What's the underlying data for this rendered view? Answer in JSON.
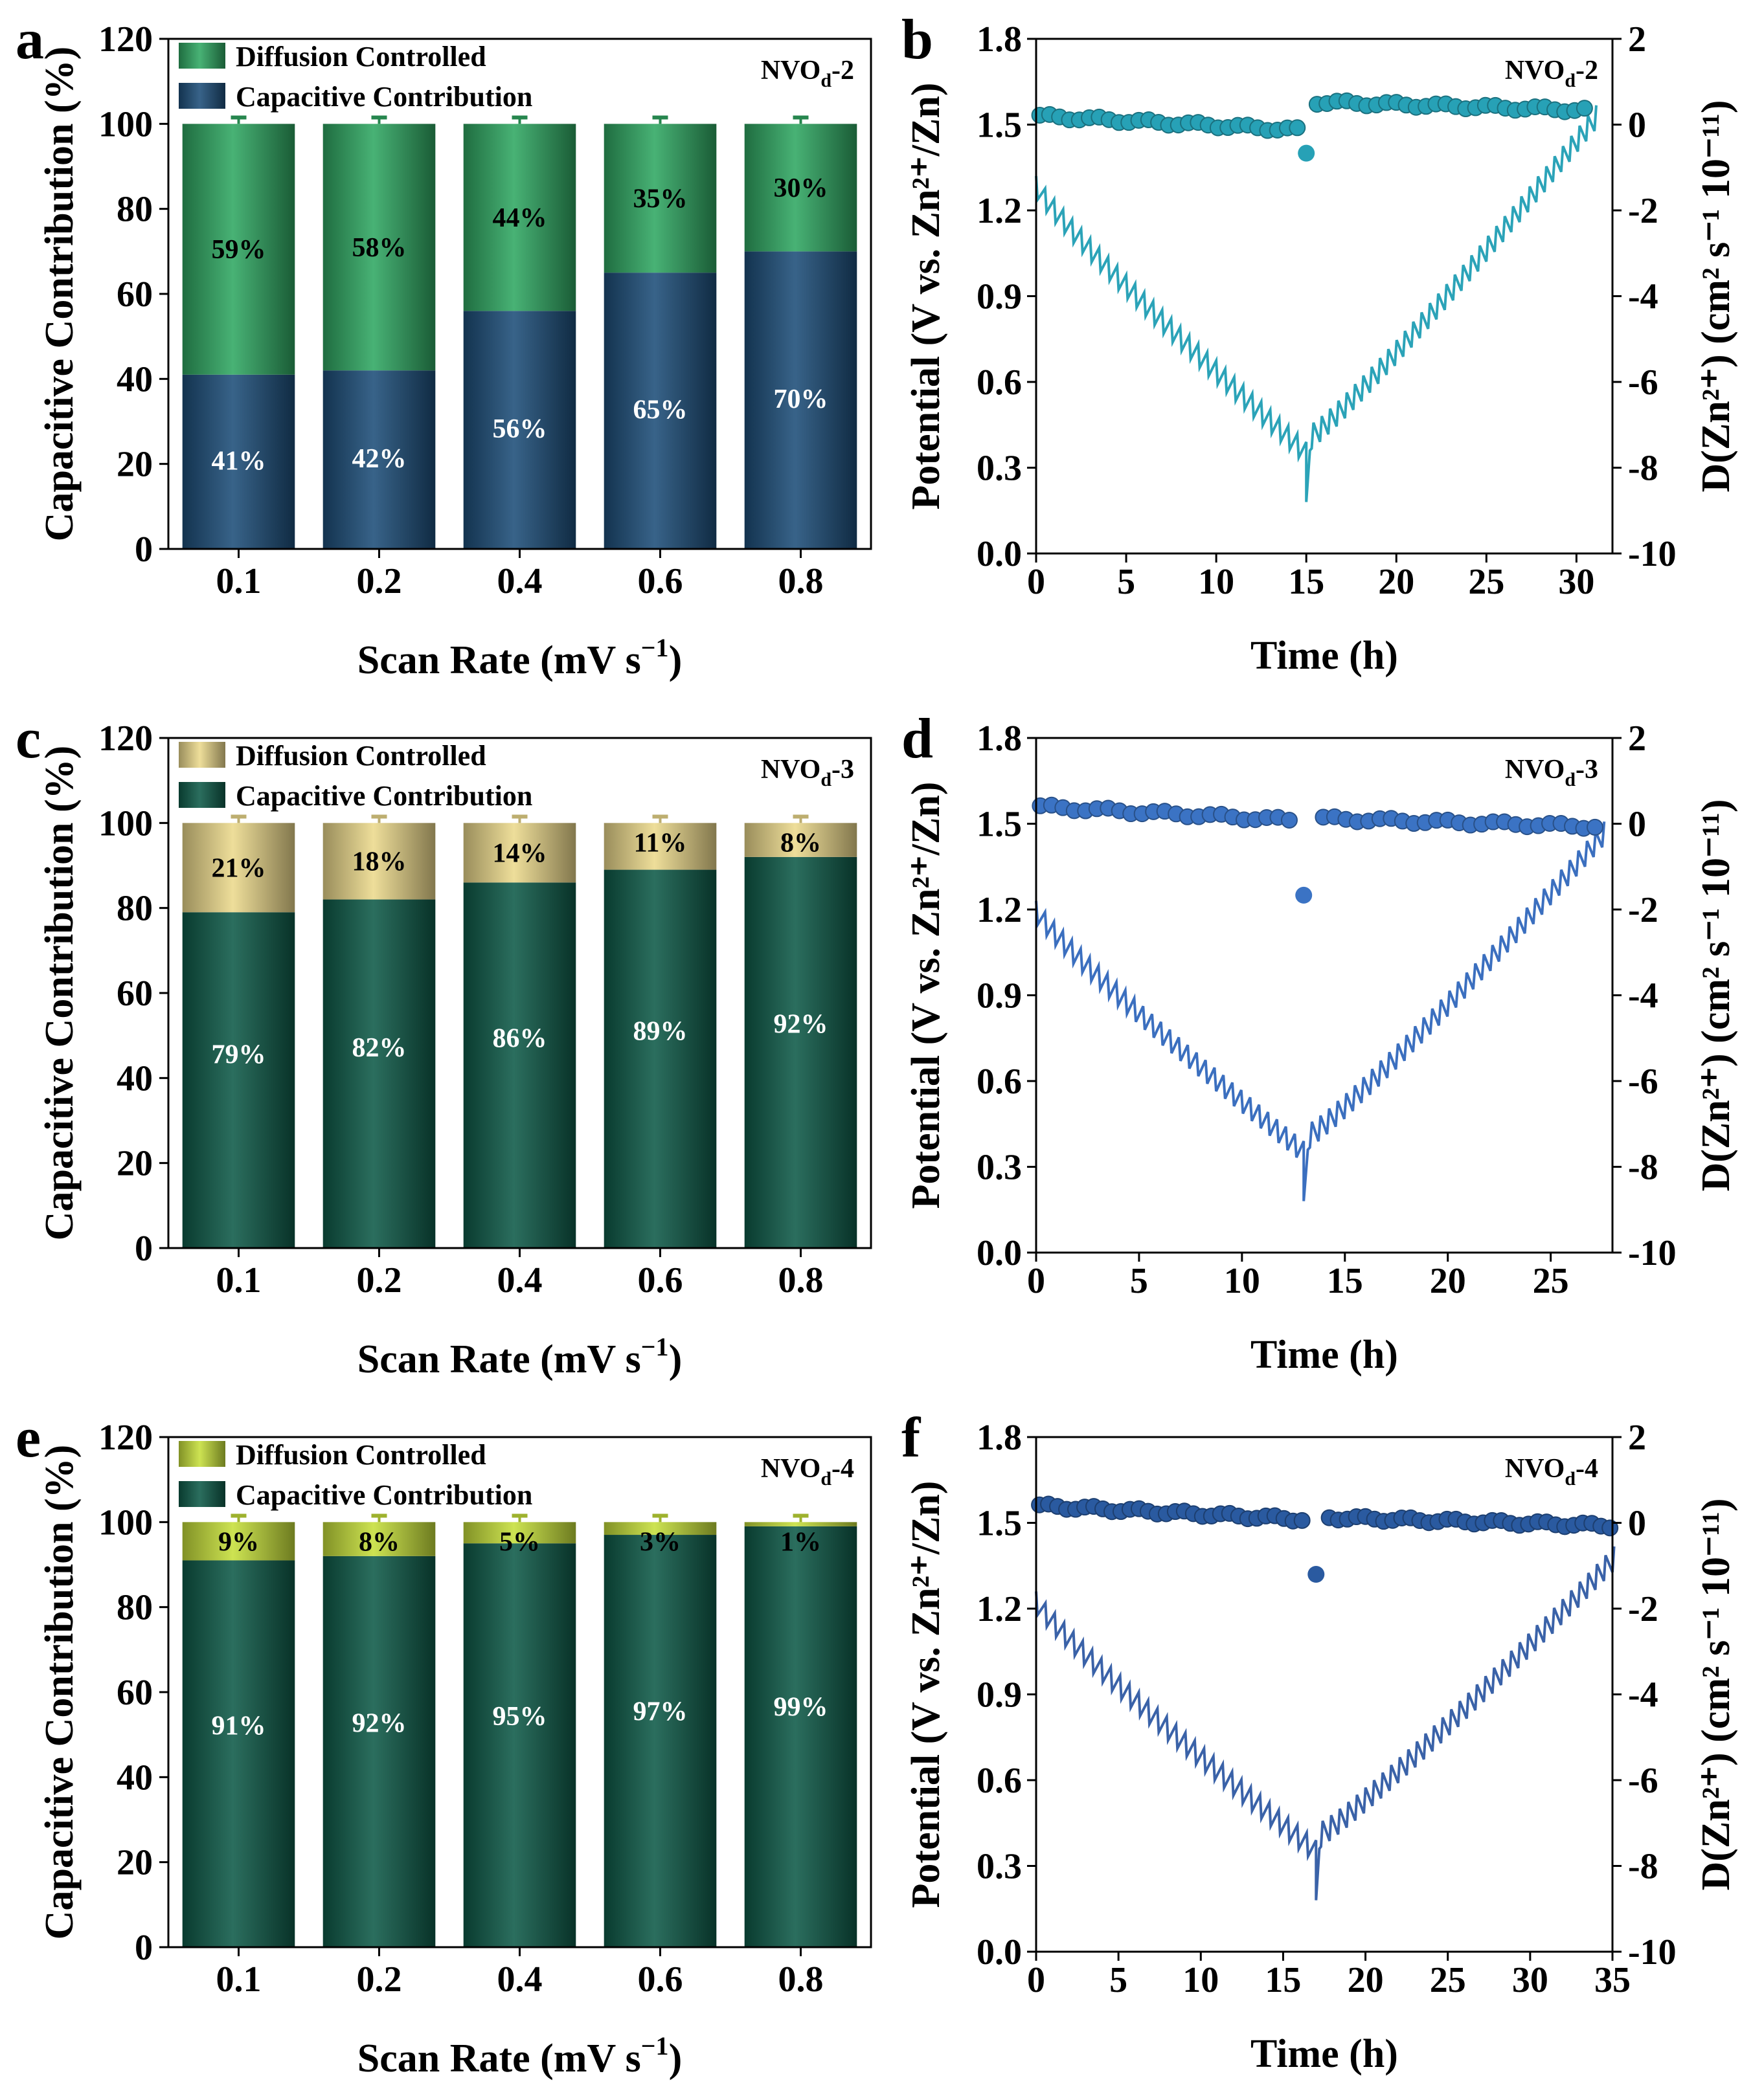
{
  "chart_data": [
    {
      "panel": "a",
      "type": "bar",
      "stacked": true,
      "sample": "NVO",
      "xlabel": "Scan Rate (mV s",
      "xlabel_sup": "−1",
      "xlabel_end": ")",
      "ylabel": "Capacitive Contribution (%)",
      "ylim": [
        0,
        120
      ],
      "yticks": [
        "0",
        "20",
        "40",
        "60",
        "80",
        "100",
        "120"
      ],
      "categories": [
        "0.1",
        "0.2",
        "0.4",
        "0.6",
        "0.8"
      ],
      "legend": [
        "Diffusion Controlled",
        "Capacitive Contribution"
      ],
      "series": [
        {
          "name": "Capacitive Contribution",
          "values": [
            41,
            42,
            56,
            65,
            70
          ],
          "labels": [
            "41%",
            "42%",
            "56%",
            "65%",
            "70%"
          ],
          "color": "#1d4e79"
        },
        {
          "name": "Diffusion Controlled",
          "values": [
            59,
            58,
            44,
            35,
            30
          ],
          "labels": [
            "59%",
            "58%",
            "44%",
            "35%",
            "30%"
          ],
          "color": "#2fa862"
        }
      ]
    },
    {
      "panel": "b",
      "type": "line",
      "sample": "NVO",
      "xlabel": "Time (h)",
      "ylabel_left": "Potential (V vs. Zn²⁺/Zn)",
      "ylabel_right": "D(Zn²⁺) (cm² s⁻¹ 10⁻¹¹)",
      "xlim": [
        0,
        32
      ],
      "xticks": [
        "0",
        "5",
        "10",
        "15",
        "20",
        "25",
        "30"
      ],
      "ylim_left": [
        0,
        1.8
      ],
      "yticks_left": [
        "0.0",
        "0.3",
        "0.6",
        "0.9",
        "1.2",
        "1.5",
        "1.8"
      ],
      "ylim_right": [
        -10,
        2
      ],
      "yticks_right": [
        "-10",
        "-8",
        "-6",
        "-4",
        "-2",
        "0",
        "2"
      ],
      "t_switch": 15,
      "t_end": 31,
      "potential_start": 1.53,
      "potential_end": 1.55,
      "potential_drop": 1.4,
      "d_start": -1.2,
      "d_min": -8.8,
      "d_end": 0.2,
      "color": "#27a1b6",
      "line_color": "#2ba3b8"
    },
    {
      "panel": "c",
      "type": "bar",
      "stacked": true,
      "sample": "NVO",
      "xlabel": "Scan Rate (mV s",
      "xlabel_sup": "−1",
      "xlabel_end": ")",
      "ylabel": "Capacitive Contribution (%)",
      "ylim": [
        0,
        120
      ],
      "yticks": [
        "0",
        "20",
        "40",
        "60",
        "80",
        "100",
        "120"
      ],
      "categories": [
        "0.1",
        "0.2",
        "0.4",
        "0.6",
        "0.8"
      ],
      "legend": [
        "Diffusion Controlled",
        "Capacitive Contribution"
      ],
      "series": [
        {
          "name": "Capacitive Contribution",
          "values": [
            79,
            82,
            86,
            89,
            92
          ],
          "labels": [
            "79%",
            "82%",
            "86%",
            "89%",
            "92%"
          ],
          "color": "#0e5a48"
        },
        {
          "name": "Diffusion Controlled",
          "values": [
            21,
            18,
            14,
            11,
            8
          ],
          "labels": [
            "21%",
            "18%",
            "14%",
            "11%",
            "8%"
          ],
          "color": "#ecd98c"
        }
      ]
    },
    {
      "panel": "d",
      "type": "line",
      "sample": "NVO",
      "xlabel": "Time (h)",
      "ylabel_left": "Potential (V vs. Zn²⁺/Zn)",
      "ylabel_right": "D(Zn²⁺) (cm² s⁻¹ 10⁻¹¹)",
      "xlim": [
        0,
        28
      ],
      "xticks": [
        "0",
        "5",
        "10",
        "15",
        "20",
        "25"
      ],
      "ylim_left": [
        0,
        1.8
      ],
      "yticks_left": [
        "0.0",
        "0.3",
        "0.6",
        "0.9",
        "1.2",
        "1.5",
        "1.8"
      ],
      "ylim_right": [
        -10,
        2
      ],
      "yticks_right": [
        "-10",
        "-8",
        "-6",
        "-4",
        "-2",
        "0",
        "2"
      ],
      "t_switch": 13,
      "t_end": 27.5,
      "potential_start": 1.56,
      "potential_end": 1.49,
      "potential_drop": 1.25,
      "d_start": -1.8,
      "d_min": -8.8,
      "d_end": -0.2,
      "color": "#3b73c4",
      "line_color": "#3b6fbf"
    },
    {
      "panel": "e",
      "type": "bar",
      "stacked": true,
      "sample": "NVO",
      "xlabel": "Scan Rate (mV s",
      "xlabel_sup": "−1",
      "xlabel_end": ")",
      "ylabel": "Capacitive Contribution (%)",
      "ylim": [
        0,
        120
      ],
      "yticks": [
        "0",
        "20",
        "40",
        "60",
        "80",
        "100",
        "120"
      ],
      "categories": [
        "0.1",
        "0.2",
        "0.4",
        "0.6",
        "0.8"
      ],
      "legend": [
        "Diffusion Controlled",
        "Capacitive Contribution"
      ],
      "series": [
        {
          "name": "Capacitive Contribution",
          "values": [
            91,
            92,
            95,
            97,
            99
          ],
          "labels": [
            "91%",
            "92%",
            "95%",
            "97%",
            "99%"
          ],
          "color": "#0e5a48"
        },
        {
          "name": "Diffusion Controlled",
          "values": [
            9,
            8,
            5,
            3,
            1
          ],
          "labels": [
            "9%",
            "8%",
            "5%",
            "3%",
            "1%"
          ],
          "color": "#c6df3a"
        }
      ]
    },
    {
      "panel": "f",
      "type": "line",
      "sample": "NVO",
      "xlabel": "Time (h)",
      "ylabel_left": "Potential (V vs. Zn²⁺/Zn)",
      "ylabel_right": "D(Zn²⁺) (cm² s⁻¹ 10⁻¹¹)",
      "xlim": [
        0,
        35
      ],
      "xticks": [
        "0",
        "5",
        "10",
        "15",
        "20",
        "25",
        "30",
        "35"
      ],
      "ylim_left": [
        0,
        1.8
      ],
      "yticks_left": [
        "0.0",
        "0.3",
        "0.6",
        "0.9",
        "1.2",
        "1.5",
        "1.8"
      ],
      "ylim_right": [
        -10,
        2
      ],
      "yticks_right": [
        "-10",
        "-8",
        "-6",
        "-4",
        "-2",
        "0",
        "2"
      ],
      "t_switch": 17,
      "t_end": 35,
      "potential_start": 1.56,
      "potential_end": 1.49,
      "potential_drop": 1.32,
      "d_start": -1.6,
      "d_min": -8.8,
      "d_end": -0.8,
      "color": "#2a5aa0",
      "line_color": "#3a62a8"
    }
  ],
  "panel_subscripts": {
    "a": "d",
    "b": "d",
    "c": "d",
    "d": "d",
    "e": "d",
    "f": "d"
  },
  "panel_suffixes": {
    "a": "-2",
    "b": "-2",
    "c": "-3",
    "d": "-3",
    "e": "-4",
    "f": "-4"
  }
}
